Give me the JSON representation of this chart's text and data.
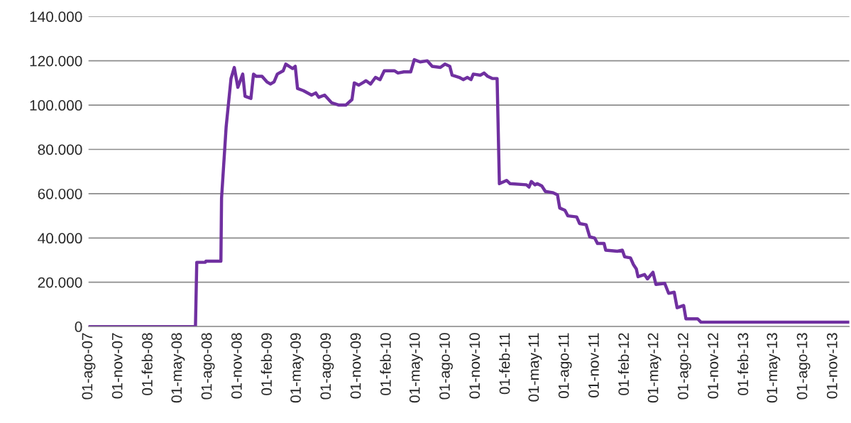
{
  "chart_data": {
    "type": "line",
    "x": [
      "2007-08-01",
      "2008-06-24",
      "2008-06-28",
      "2008-07-24",
      "2008-07-26",
      "2008-09-10",
      "2008-09-12",
      "2008-09-26",
      "2008-10-11",
      "2008-10-21",
      "2008-11-01",
      "2008-11-16",
      "2008-11-23",
      "2008-12-11",
      "2008-12-19",
      "2008-12-27",
      "2009-01-14",
      "2009-01-29",
      "2009-02-09",
      "2009-02-20",
      "2009-03-02",
      "2009-03-20",
      "2009-03-28",
      "2009-04-07",
      "2009-04-18",
      "2009-04-26",
      "2009-05-03",
      "2009-05-21",
      "2009-06-15",
      "2009-06-28",
      "2009-07-07",
      "2009-07-25",
      "2009-08-16",
      "2009-09-07",
      "2009-09-28",
      "2009-10-17",
      "2009-10-24",
      "2009-11-07",
      "2009-11-29",
      "2009-12-13",
      "2009-12-28",
      "2010-01-11",
      "2010-01-24",
      "2010-02-24",
      "2010-03-07",
      "2010-03-25",
      "2010-04-15",
      "2010-04-26",
      "2010-05-14",
      "2010-06-05",
      "2010-06-20",
      "2010-07-15",
      "2010-07-29",
      "2010-08-13",
      "2010-08-20",
      "2010-09-11",
      "2010-09-23",
      "2010-10-06",
      "2010-10-17",
      "2010-10-24",
      "2010-11-15",
      "2010-11-26",
      "2010-12-07",
      "2010-12-21",
      "2011-01-05",
      "2011-01-12",
      "2011-02-03",
      "2011-02-14",
      "2011-04-05",
      "2011-04-13",
      "2011-04-20",
      "2011-05-01",
      "2011-05-08",
      "2011-05-22",
      "2011-06-02",
      "2011-06-24",
      "2011-07-09",
      "2011-07-16",
      "2011-08-01",
      "2011-08-10",
      "2011-09-06",
      "2011-09-15",
      "2011-10-05",
      "2011-10-16",
      "2011-10-31",
      "2011-11-09",
      "2011-11-29",
      "2011-12-04",
      "2012-01-09",
      "2012-01-24",
      "2012-01-31",
      "2012-02-18",
      "2012-02-27",
      "2012-03-07",
      "2012-03-12",
      "2012-04-01",
      "2012-04-10",
      "2012-04-27",
      "2012-05-06",
      "2012-06-02",
      "2012-06-14",
      "2012-07-01",
      "2012-07-10",
      "2012-07-30",
      "2012-08-06",
      "2012-09-11",
      "2012-09-21",
      "2013-12-20"
    ],
    "series": [
      {
        "color": "#7030a0",
        "values": [
          0,
          0,
          29000,
          29000,
          29500,
          29500,
          58000,
          90000,
          112000,
          117000,
          108000,
          114000,
          104000,
          103000,
          114000,
          113000,
          113000,
          110500,
          109500,
          110500,
          114000,
          115500,
          118500,
          117500,
          116500,
          117500,
          107500,
          106500,
          104500,
          105500,
          103500,
          104500,
          101000,
          100000,
          100000,
          102500,
          110000,
          109000,
          111000,
          109500,
          112500,
          111500,
          115500,
          115500,
          114500,
          115000,
          115000,
          120500,
          119500,
          120000,
          117500,
          117000,
          118500,
          117500,
          113500,
          112500,
          111500,
          112500,
          111500,
          114000,
          113500,
          114500,
          113000,
          112000,
          112000,
          64500,
          66000,
          64500,
          64000,
          63000,
          65500,
          64000,
          64500,
          63500,
          61000,
          60500,
          59500,
          53500,
          52500,
          50000,
          49500,
          46500,
          46000,
          40500,
          40000,
          37500,
          37500,
          34500,
          34000,
          34500,
          31500,
          31000,
          28000,
          26000,
          22500,
          23500,
          21500,
          24500,
          19000,
          19500,
          15000,
          15500,
          8500,
          9500,
          3500,
          3500,
          2000,
          2000
        ]
      }
    ],
    "xlim": [
      "2007-08-01",
      "2013-12-20"
    ],
    "xticks": [
      {
        "value": "2007-08-01",
        "label": "01-ago-07"
      },
      {
        "value": "2007-11-01",
        "label": "01-nov-07"
      },
      {
        "value": "2008-02-01",
        "label": "01-feb-08"
      },
      {
        "value": "2008-05-01",
        "label": "01-may-08"
      },
      {
        "value": "2008-08-01",
        "label": "01-ago-08"
      },
      {
        "value": "2008-11-01",
        "label": "01-nov-08"
      },
      {
        "value": "2009-02-01",
        "label": "01-feb-09"
      },
      {
        "value": "2009-05-01",
        "label": "01-may-09"
      },
      {
        "value": "2009-08-01",
        "label": "01-ago-09"
      },
      {
        "value": "2009-11-01",
        "label": "01-nov-09"
      },
      {
        "value": "2010-02-01",
        "label": "01-feb-10"
      },
      {
        "value": "2010-05-01",
        "label": "01-may-10"
      },
      {
        "value": "2010-08-01",
        "label": "01-ago-10"
      },
      {
        "value": "2010-11-01",
        "label": "01-nov-10"
      },
      {
        "value": "2011-02-01",
        "label": "01-feb-11"
      },
      {
        "value": "2011-05-01",
        "label": "01-may-11"
      },
      {
        "value": "2011-08-01",
        "label": "01-ago-11"
      },
      {
        "value": "2011-11-01",
        "label": "01-nov-11"
      },
      {
        "value": "2012-02-01",
        "label": "01-feb-12"
      },
      {
        "value": "2012-05-01",
        "label": "01-may-12"
      },
      {
        "value": "2012-08-01",
        "label": "01-ago-12"
      },
      {
        "value": "2012-11-01",
        "label": "01-nov-12"
      },
      {
        "value": "2013-02-01",
        "label": "01-feb-13"
      },
      {
        "value": "2013-05-01",
        "label": "01-may-13"
      },
      {
        "value": "2013-08-01",
        "label": "01-ago-13"
      },
      {
        "value": "2013-11-01",
        "label": "01-nov-13"
      }
    ],
    "ylim": [
      0,
      140000
    ],
    "yticks": [
      0,
      {
        "value": 20000,
        "label": "20.000"
      },
      {
        "value": 40000,
        "label": "40.000"
      },
      {
        "value": 60000,
        "label": "60.000"
      },
      {
        "value": 80000,
        "label": "80.000"
      },
      {
        "value": 100000,
        "label": "100.000"
      },
      {
        "value": 120000,
        "label": "120.000"
      },
      {
        "value": 140000,
        "label": "140.000"
      }
    ],
    "grid": "y",
    "marker": "none",
    "line_style": "solid"
  }
}
